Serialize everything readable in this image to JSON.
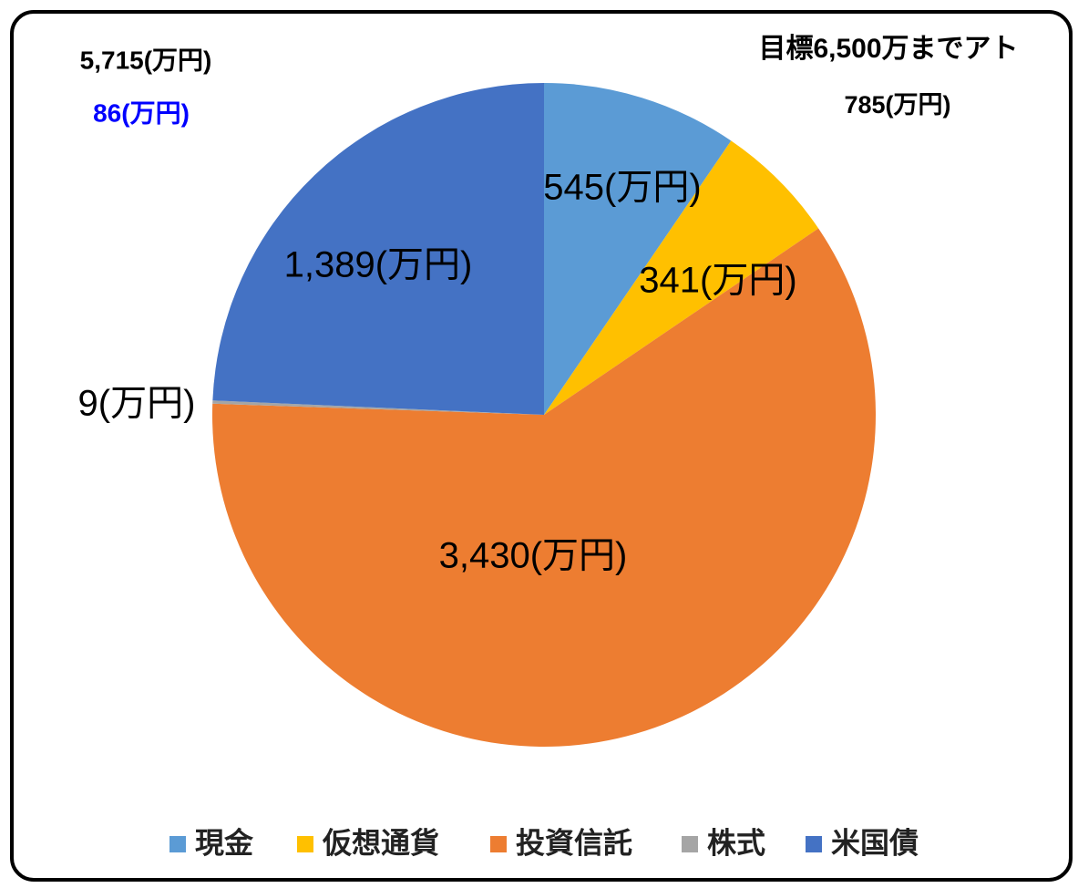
{
  "chart_data": {
    "type": "pie",
    "categories": [
      "現金",
      "仮想通貨",
      "投資信託",
      "株式",
      "米国債"
    ],
    "values": [
      545,
      341,
      3430,
      9,
      1389
    ],
    "value_labels": [
      "545(万円)",
      "341(万円)",
      "3,430(万円)",
      "9(万円)",
      "1,389(万円)"
    ],
    "colors": [
      "#5b9bd5",
      "#ffc000",
      "#ed7d31",
      "#a5a5a5",
      "#4472c4"
    ],
    "legend": "bottom",
    "annotations": [
      {
        "text": "5,715(万円)",
        "color": "#000000"
      },
      {
        "text": "86(万円)",
        "color": "#0000ff"
      },
      {
        "text": "目標6,500万までアト",
        "color": "#000000"
      },
      {
        "text": "785(万円)",
        "color": "#000000"
      }
    ]
  }
}
